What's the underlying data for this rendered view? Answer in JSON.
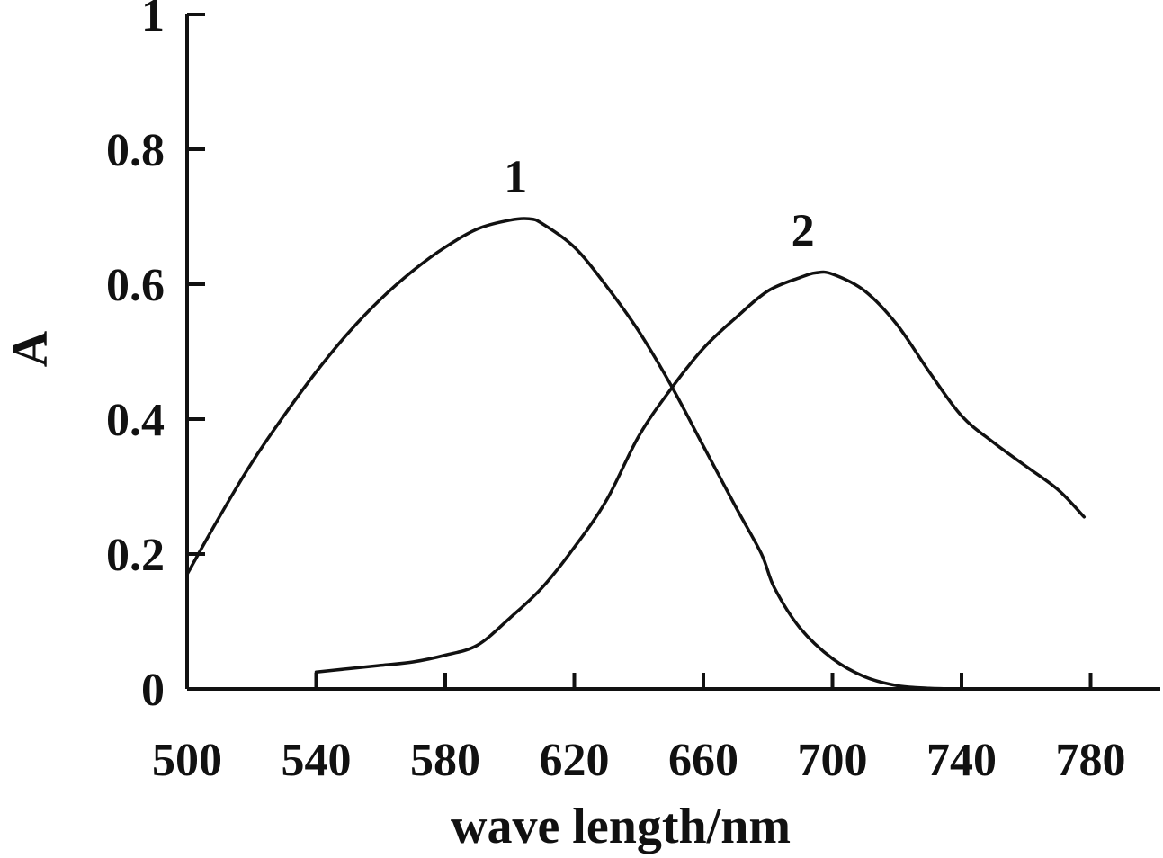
{
  "chart_data": {
    "type": "line",
    "xlabel": "wave length/nm",
    "ylabel": "A",
    "xlim": [
      500,
      800
    ],
    "ylim": [
      0,
      1
    ],
    "x_ticks": [
      500,
      540,
      580,
      620,
      660,
      700,
      740,
      780
    ],
    "x_tick_labels": [
      "500",
      "540",
      "580",
      "620",
      "660",
      "700",
      "740",
      "780"
    ],
    "y_ticks": [
      0,
      0.2,
      0.4,
      0.6,
      0.8,
      1
    ],
    "y_tick_labels": [
      "0",
      "0.2",
      "0.4",
      "0.6",
      "0.8",
      "1"
    ],
    "grid": false,
    "series": [
      {
        "label": "1",
        "x": [
          500,
          510,
          520,
          530,
          540,
          550,
          560,
          570,
          580,
          590,
          600,
          606,
          610,
          620,
          630,
          640,
          650,
          660,
          670,
          678,
          682,
          690,
          700,
          710,
          720,
          730,
          740
        ],
        "y": [
          0.17,
          0.255,
          0.335,
          0.405,
          0.47,
          0.528,
          0.578,
          0.62,
          0.655,
          0.682,
          0.695,
          0.697,
          0.69,
          0.655,
          0.597,
          0.53,
          0.45,
          0.36,
          0.27,
          0.2,
          0.15,
          0.09,
          0.045,
          0.018,
          0.005,
          0.001,
          0.0
        ]
      },
      {
        "label": "2",
        "x": [
          540,
          550,
          560,
          570,
          580,
          590,
          600,
          610,
          620,
          630,
          640,
          650,
          660,
          670,
          680,
          690,
          695,
          700,
          710,
          720,
          730,
          740,
          750,
          760,
          770,
          778
        ],
        "y": [
          0.025,
          0.03,
          0.035,
          0.04,
          0.05,
          0.065,
          0.105,
          0.15,
          0.21,
          0.28,
          0.375,
          0.445,
          0.505,
          0.55,
          0.59,
          0.61,
          0.617,
          0.615,
          0.59,
          0.54,
          0.47,
          0.405,
          0.365,
          0.33,
          0.295,
          0.255
        ]
      }
    ]
  }
}
